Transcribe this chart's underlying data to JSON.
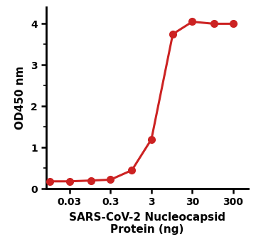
{
  "x_values": [
    0.01,
    0.03,
    0.1,
    0.3,
    1,
    3,
    10,
    30,
    100,
    300
  ],
  "y_values": [
    0.18,
    0.18,
    0.2,
    0.22,
    0.45,
    1.2,
    3.75,
    4.05,
    4.0,
    4.0
  ],
  "line_color": "#cc2222",
  "marker_color": "#cc2222",
  "marker_size": 7,
  "line_width": 2.2,
  "xlabel_line1": "SARS-CoV-2 Nucleocapsid",
  "xlabel_line2": "Protein (ng)",
  "ylabel": "OD450 nm",
  "ylim": [
    0,
    4.4
  ],
  "yticks": [
    0,
    1,
    2,
    3,
    4
  ],
  "xtick_labels": [
    "0.03",
    "0.3",
    "3",
    "30",
    "300"
  ],
  "xtick_positions": [
    0.03,
    0.3,
    3,
    30,
    300
  ],
  "background_color": "#ffffff",
  "axis_linewidth": 2.0,
  "xlabel_fontsize": 11,
  "ylabel_fontsize": 11,
  "tick_fontsize": 10
}
